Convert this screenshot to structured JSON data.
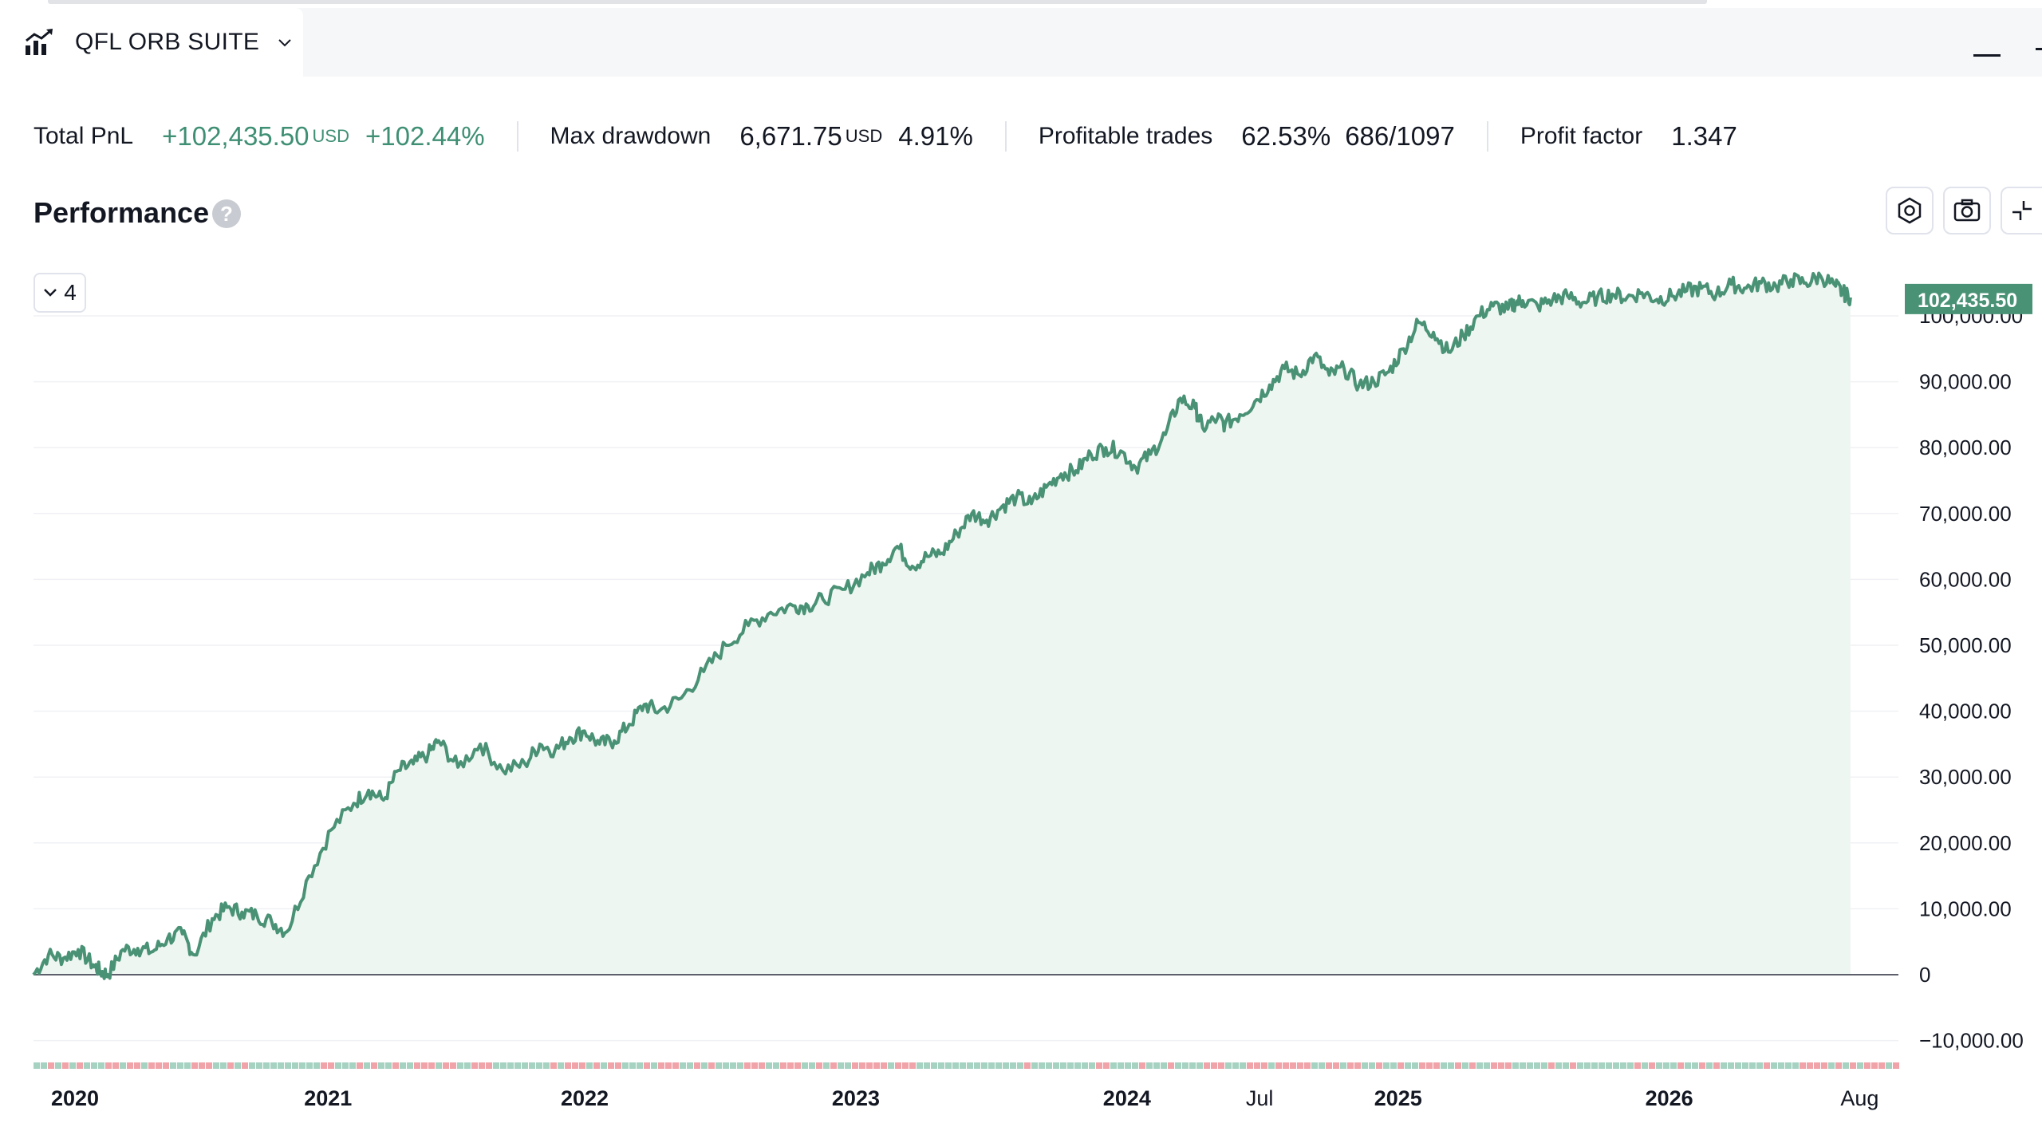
{
  "window": {
    "tab_title": "QFL ORB SUITE"
  },
  "stats": {
    "total_pnl": {
      "label": "Total PnL",
      "value": "+102,435.50",
      "currency": "USD",
      "percent": "+102.44%"
    },
    "max_drawdown": {
      "label": "Max drawdown",
      "value": "6,671.75",
      "currency": "USD",
      "percent": "4.91%"
    },
    "profitable_trades": {
      "label": "Profitable trades",
      "percent": "62.53%",
      "ratio": "686/1097"
    },
    "profit_factor": {
      "label": "Profit factor",
      "value": "1.347"
    }
  },
  "performance": {
    "title": "Performance",
    "help": "?",
    "selector_value": "4"
  },
  "colors": {
    "accent": "#4a9276",
    "fill": "#eef6f2",
    "win_bar": "#a6d2c2",
    "loss_bar": "#f0a3a8"
  },
  "icons": [
    "chart-icon",
    "chevron-down-icon",
    "settings-icon",
    "camera-icon",
    "collapse-icon"
  ],
  "chart_data": {
    "type": "area",
    "last_value_label": "102,435.50",
    "y_ticks": [
      {
        "value": 100000,
        "label": "100,000.00"
      },
      {
        "value": 90000,
        "label": "90,000.00"
      },
      {
        "value": 80000,
        "label": "80,000.00"
      },
      {
        "value": 70000,
        "label": "70,000.00"
      },
      {
        "value": 60000,
        "label": "60,000.00"
      },
      {
        "value": 50000,
        "label": "50,000.00"
      },
      {
        "value": 40000,
        "label": "40,000.00"
      },
      {
        "value": 30000,
        "label": "30,000.00"
      },
      {
        "value": 20000,
        "label": "20,000.00"
      },
      {
        "value": 10000,
        "label": "10,000.00"
      },
      {
        "value": 0,
        "label": "0"
      },
      {
        "value": -10000,
        "label": "−10,000.00"
      }
    ],
    "ylim": [
      -10000,
      102500
    ],
    "x_ticks": [
      {
        "label": "2020",
        "t": 0.0,
        "bold": true
      },
      {
        "label": "2021",
        "t": 0.14,
        "bold": true
      },
      {
        "label": "2022",
        "t": 0.282,
        "bold": true
      },
      {
        "label": "2023",
        "t": 0.432,
        "bold": true
      },
      {
        "label": "2024",
        "t": 0.582,
        "bold": true
      },
      {
        "label": "Jul",
        "t": 0.661,
        "bold": false
      },
      {
        "label": "2025",
        "t": 0.732,
        "bold": true
      },
      {
        "label": "2026",
        "t": 0.882,
        "bold": true
      },
      {
        "label": "Aug",
        "t": 0.99,
        "bold": false
      }
    ],
    "equity_points": [
      [
        0.0,
        0
      ],
      [
        0.01,
        3000
      ],
      [
        0.02,
        2500
      ],
      [
        0.03,
        3800
      ],
      [
        0.04,
        1500
      ],
      [
        0.045,
        500
      ],
      [
        0.05,
        0
      ],
      [
        0.06,
        3800
      ],
      [
        0.07,
        4000
      ],
      [
        0.08,
        3500
      ],
      [
        0.09,
        5500
      ],
      [
        0.1,
        6200
      ],
      [
        0.108,
        3000
      ],
      [
        0.12,
        8500
      ],
      [
        0.13,
        10200
      ],
      [
        0.14,
        9500
      ],
      [
        0.15,
        9000
      ],
      [
        0.16,
        8000
      ],
      [
        0.17,
        6500
      ],
      [
        0.185,
        15000
      ],
      [
        0.2,
        22000
      ],
      [
        0.215,
        26000
      ],
      [
        0.225,
        28000
      ],
      [
        0.235,
        26500
      ],
      [
        0.245,
        31000
      ],
      [
        0.255,
        32000
      ],
      [
        0.265,
        33500
      ],
      [
        0.272,
        35500
      ],
      [
        0.285,
        31500
      ],
      [
        0.3,
        35000
      ],
      [
        0.315,
        31000
      ],
      [
        0.33,
        32000
      ],
      [
        0.34,
        35000
      ],
      [
        0.35,
        34000
      ],
      [
        0.36,
        36000
      ],
      [
        0.37,
        37000
      ],
      [
        0.38,
        35000
      ],
      [
        0.39,
        35500
      ],
      [
        0.4,
        38000
      ],
      [
        0.41,
        41000
      ],
      [
        0.42,
        40000
      ],
      [
        0.435,
        42000
      ],
      [
        0.45,
        46000
      ],
      [
        0.465,
        50000
      ],
      [
        0.48,
        53000
      ],
      [
        0.495,
        55000
      ],
      [
        0.51,
        56000
      ],
      [
        0.52,
        56000
      ],
      [
        0.53,
        57000
      ],
      [
        0.545,
        58500
      ],
      [
        0.56,
        61000
      ],
      [
        0.57,
        62500
      ],
      [
        0.58,
        65000
      ],
      [
        0.59,
        62000
      ],
      [
        0.6,
        63500
      ],
      [
        0.61,
        64000
      ],
      [
        0.62,
        67000
      ],
      [
        0.63,
        70000
      ],
      [
        0.64,
        69000
      ],
      [
        0.65,
        71000
      ],
      [
        0.66,
        72500
      ],
      [
        0.67,
        71500
      ],
      [
        0.68,
        74000
      ],
      [
        0.69,
        76000
      ],
      [
        0.7,
        76500
      ],
      [
        0.71,
        79000
      ],
      [
        0.72,
        80000
      ],
      [
        0.73,
        79500
      ],
      [
        0.74,
        77000
      ],
      [
        0.75,
        79000
      ],
      [
        0.76,
        82000
      ],
      [
        0.77,
        87500
      ],
      [
        0.78,
        86000
      ],
      [
        0.785,
        83000
      ],
      [
        0.795,
        84500
      ],
      [
        0.8,
        83500
      ],
      [
        0.81,
        85000
      ],
      [
        0.82,
        87000
      ],
      [
        0.83,
        89500
      ],
      [
        0.84,
        92000
      ],
      [
        0.85,
        91000
      ],
      [
        0.86,
        94000
      ],
      [
        0.87,
        91000
      ],
      [
        0.88,
        92000
      ],
      [
        0.89,
        89500
      ],
      [
        0.9,
        90000
      ],
      [
        0.91,
        91500
      ],
      [
        0.92,
        95000
      ],
      [
        0.93,
        99000
      ],
      [
        0.94,
        97500
      ],
      [
        0.95,
        94500
      ],
      [
        0.96,
        97000
      ],
      [
        0.97,
        100000
      ],
      [
        0.98,
        101500
      ],
      [
        0.99,
        101000
      ],
      [
        0.995,
        102000
      ],
      [
        1.0,
        102300
      ],
      [
        1.01,
        101500
      ],
      [
        1.02,
        102500
      ],
      [
        1.03,
        103000
      ],
      [
        1.04,
        102000
      ],
      [
        1.05,
        102800
      ],
      [
        1.06,
        103300
      ],
      [
        1.07,
        102800
      ],
      [
        1.08,
        103500
      ],
      [
        1.09,
        102500
      ],
      [
        1.1,
        103000
      ],
      [
        1.11,
        103800
      ],
      [
        1.12,
        104200
      ],
      [
        1.13,
        103300
      ],
      [
        1.14,
        104800
      ],
      [
        1.15,
        104200
      ],
      [
        1.16,
        105000
      ],
      [
        1.17,
        104500
      ],
      [
        1.18,
        105500
      ],
      [
        1.19,
        105000
      ],
      [
        1.2,
        106000
      ],
      [
        1.21,
        104500
      ],
      [
        1.215,
        103500
      ],
      [
        1.22,
        102800
      ]
    ]
  }
}
